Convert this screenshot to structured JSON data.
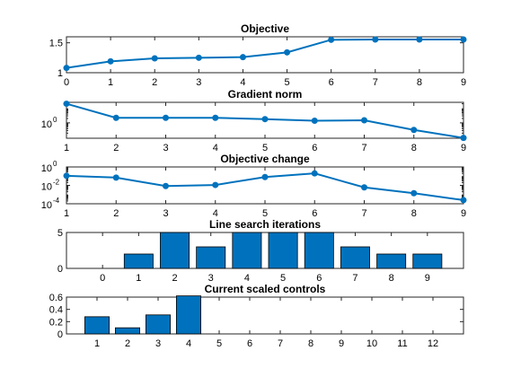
{
  "figure": {
    "background": "#ffffff",
    "line_color": "#0072bd",
    "bar_color": "#0072bd",
    "bar_edge": "#000000"
  },
  "chart_data": [
    {
      "id": "objective",
      "type": "line",
      "title": "Objective",
      "x": [
        0,
        1,
        2,
        3,
        4,
        5,
        6,
        7,
        8,
        9
      ],
      "values": [
        1.08,
        1.19,
        1.24,
        1.25,
        1.26,
        1.34,
        1.55,
        1.555,
        1.555,
        1.555
      ],
      "xlim": [
        0,
        9
      ],
      "ylim": [
        1,
        1.6
      ],
      "yscale": "linear",
      "xticks": [
        "0",
        "1",
        "2",
        "3",
        "4",
        "5",
        "6",
        "7",
        "8",
        "9"
      ],
      "yticks": [
        {
          "value": 1,
          "label": "1"
        },
        {
          "value": 1.5,
          "label": "1.5"
        }
      ],
      "marker": "circle",
      "grid": false
    },
    {
      "id": "gradient-norm",
      "type": "line",
      "title": "Gradient norm",
      "x": [
        1,
        2,
        3,
        4,
        5,
        6,
        7,
        8,
        9
      ],
      "values": [
        20,
        2.2,
        2.2,
        2.2,
        1.8,
        1.4,
        1.5,
        0.33,
        0.095
      ],
      "xlim": [
        1,
        9
      ],
      "ylim": [
        0.09,
        25
      ],
      "yscale": "log",
      "xticks": [
        "1",
        "2",
        "3",
        "4",
        "5",
        "6",
        "7",
        "8",
        "9"
      ],
      "yticks": [
        {
          "value": 1,
          "base": "10",
          "exp": "0"
        }
      ],
      "marker": "circle",
      "grid": false
    },
    {
      "id": "objective-change",
      "type": "line",
      "title": "Objective change",
      "x": [
        1,
        2,
        3,
        4,
        5,
        6,
        7,
        8,
        9
      ],
      "values": [
        0.11,
        0.07,
        0.0085,
        0.011,
        0.08,
        0.2,
        0.006,
        0.0014,
        0.00025
      ],
      "xlim": [
        1,
        9
      ],
      "ylim": [
        0.0001,
        1
      ],
      "yscale": "log",
      "xticks": [
        "1",
        "2",
        "3",
        "4",
        "5",
        "6",
        "7",
        "8",
        "9"
      ],
      "yticks": [
        {
          "value": 1,
          "base": "10",
          "exp": "0"
        },
        {
          "value": 0.01,
          "base": "10",
          "exp": "-2"
        },
        {
          "value": 0.0001,
          "base": "10",
          "exp": "-4"
        }
      ],
      "marker": "circle",
      "grid": false
    },
    {
      "id": "line-search-iterations",
      "type": "bar",
      "title": "Line search iterations",
      "categories": [
        "0",
        "1",
        "2",
        "3",
        "4",
        "5",
        "6",
        "7",
        "8",
        "9"
      ],
      "values": [
        0,
        2,
        5,
        3,
        5,
        5,
        5,
        3,
        2,
        2
      ],
      "xlim": [
        -1,
        10
      ],
      "ylim": [
        0,
        5
      ],
      "yticks": [
        {
          "value": 0,
          "label": "0"
        },
        {
          "value": 5,
          "label": "5"
        }
      ],
      "grid": false
    },
    {
      "id": "current-scaled-controls",
      "type": "bar",
      "title": "Current scaled controls",
      "categories": [
        "1",
        "2",
        "3",
        "4",
        "5",
        "6",
        "7",
        "8",
        "9",
        "10",
        "11",
        "12"
      ],
      "values": [
        0.28,
        0.1,
        0.31,
        0.62,
        0,
        0,
        0,
        0,
        0,
        0,
        0,
        0
      ],
      "xlim": [
        0,
        13
      ],
      "ylim": [
        0,
        0.6
      ],
      "yticks": [
        {
          "value": 0,
          "label": "0"
        },
        {
          "value": 0.2,
          "label": "0.2"
        },
        {
          "value": 0.4,
          "label": "0.4"
        },
        {
          "value": 0.6,
          "label": "0.6"
        }
      ],
      "grid": false
    }
  ]
}
